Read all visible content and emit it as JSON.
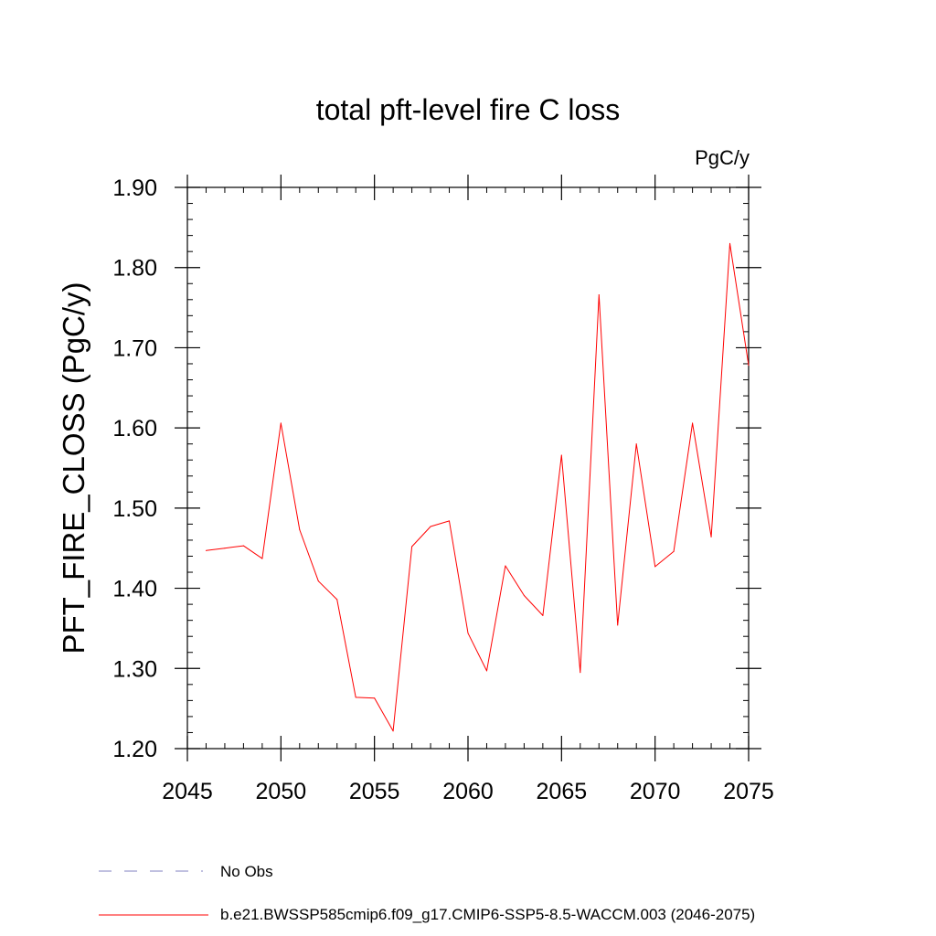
{
  "chart_data": {
    "type": "line",
    "title": "total pft-level fire C loss",
    "units": "PgC/y",
    "ylabel": "PFT_FIRE_CLOSS  (PgC/y)",
    "xlabel": "",
    "xlim": [
      2045,
      2075
    ],
    "ylim": [
      1.2,
      1.9
    ],
    "x_ticks": [
      2045,
      2050,
      2055,
      2060,
      2065,
      2070,
      2075
    ],
    "x_tick_labels": [
      "2045",
      "2050",
      "2055",
      "2060",
      "2065",
      "2070",
      "2075"
    ],
    "y_ticks": [
      1.2,
      1.3,
      1.4,
      1.5,
      1.6,
      1.7,
      1.8,
      1.9
    ],
    "y_tick_labels": [
      "1.20",
      "1.30",
      "1.40",
      "1.50",
      "1.60",
      "1.70",
      "1.80",
      "1.90"
    ],
    "grid": false,
    "series": [
      {
        "name": "b.e21.BWSSP585cmip6.f09_g17.CMIP6-SSP5-8.5-WACCM.003 (2046-2075)",
        "color": "#ff0000",
        "x": [
          2046,
          2047,
          2048,
          2049,
          2050,
          2051,
          2052,
          2053,
          2054,
          2055,
          2056,
          2057,
          2058,
          2059,
          2060,
          2061,
          2062,
          2063,
          2064,
          2065,
          2066,
          2067,
          2068,
          2069,
          2070,
          2071,
          2072,
          2073,
          2074,
          2075
        ],
        "values": [
          1.447,
          1.45,
          1.453,
          1.437,
          1.606,
          1.473,
          1.409,
          1.386,
          1.264,
          1.263,
          1.222,
          1.452,
          1.477,
          1.484,
          1.344,
          1.297,
          1.428,
          1.391,
          1.366,
          1.566,
          1.295,
          1.766,
          1.354,
          1.58,
          1.427,
          1.446,
          1.606,
          1.464,
          1.83,
          1.678
        ]
      }
    ],
    "legend": [
      {
        "label": "No Obs",
        "style": "dashed",
        "color": "#8080c0"
      },
      {
        "label": "b.e21.BWSSP585cmip6.f09_g17.CMIP6-SSP5-8.5-WACCM.003 (2046-2075)",
        "style": "solid",
        "color": "#ff0000"
      }
    ]
  }
}
